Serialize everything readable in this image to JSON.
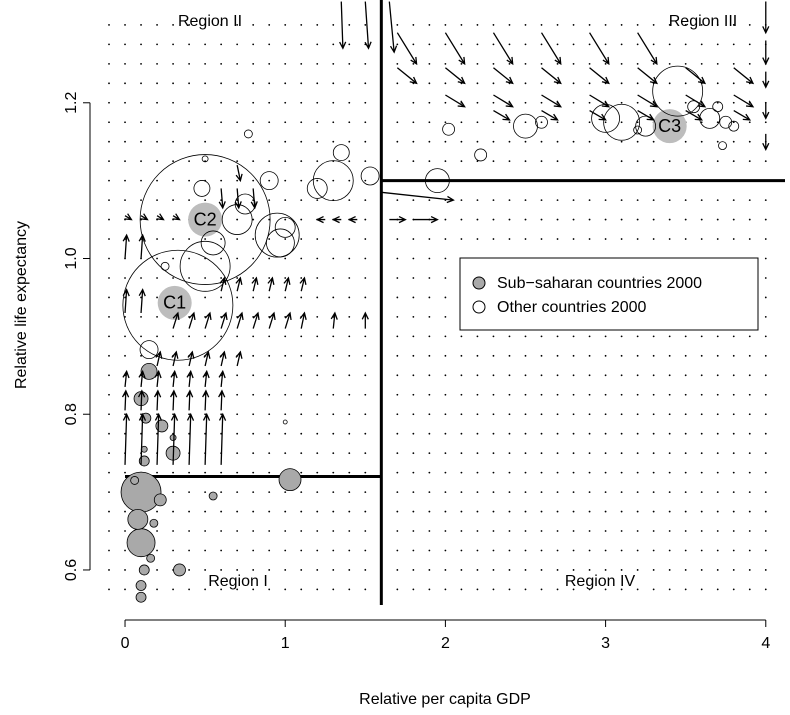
{
  "chart_data": {
    "type": "bubble-field",
    "xlabel": "Relative per capita GDP",
    "ylabel": "Relative life expectancy",
    "xlim": [
      -0.125,
      4.12
    ],
    "ylim": [
      0.555,
      1.332
    ],
    "xticks": [
      0,
      1,
      2,
      3,
      4
    ],
    "yticks": [
      0.6,
      0.8,
      {
        "value": 1.0,
        "label": "1.0"
      },
      1.2
    ],
    "legend": "center-right",
    "annotations": [
      "Region II",
      "Region III",
      "Region I",
      "Region IV"
    ],
    "thresholds": [
      {
        "x": [
          1.6,
          1.6
        ],
        "y": [
          0.555,
          1.332
        ]
      },
      {
        "x": [
          0,
          1.6
        ],
        "y": [
          0.72,
          0.72
        ]
      },
      {
        "x": [
          1.6,
          4.12
        ],
        "y": [
          1.1,
          1.1
        ]
      }
    ],
    "series": [
      {
        "name": "Sub−saharan countries 2000",
        "color": "#a9a9a9",
        "x": [
          0.1,
          0.1,
          0.08,
          0.12,
          0.15,
          0.1,
          0.13,
          0.23,
          0.3,
          0.3,
          0.55,
          0.22,
          0.34,
          0.12,
          0.1,
          0.1,
          0.16,
          0.18,
          1.03,
          0.12,
          0.06
        ],
        "y": [
          0.7,
          0.635,
          0.665,
          0.74,
          0.855,
          0.82,
          0.795,
          0.785,
          0.75,
          0.77,
          0.695,
          0.69,
          0.6,
          0.6,
          0.58,
          0.565,
          0.615,
          0.66,
          0.716,
          0.755,
          0.715
        ],
        "sizes": [
          20,
          14,
          10,
          5,
          8,
          7,
          5,
          6,
          7,
          3,
          4,
          6,
          6,
          5,
          5,
          5,
          4,
          4,
          11,
          3,
          4
        ]
      },
      {
        "name": "Other countries 2000",
        "color": "none",
        "x": [
          0.33,
          0.5,
          0.5,
          0.48,
          0.55,
          0.7,
          0.75,
          0.95,
          0.97,
          1.0,
          0.9,
          1.2,
          1.3,
          1.35,
          1.53,
          1.95,
          0.15,
          0.25,
          0.77,
          0.5,
          1.0,
          2.02,
          2.22,
          2.5,
          2.6,
          3.0,
          3.1,
          3.25,
          3.45,
          3.55,
          3.65,
          3.7,
          3.75,
          3.8,
          3.73,
          3.2
        ],
        "y": [
          0.94,
          1.05,
          0.99,
          1.09,
          1.02,
          1.05,
          1.07,
          1.03,
          1.02,
          1.04,
          1.1,
          1.09,
          1.1,
          1.136,
          1.106,
          1.1,
          0.883,
          0.99,
          1.16,
          1.128,
          0.79,
          1.166,
          1.133,
          1.17,
          1.175,
          1.18,
          1.175,
          1.17,
          1.215,
          1.195,
          1.18,
          1.195,
          1.175,
          1.17,
          1.145,
          1.165
        ],
        "sizes": [
          55,
          65,
          25,
          8,
          12,
          15,
          10,
          22,
          14,
          10,
          9,
          10,
          20,
          8,
          9,
          12,
          9,
          4,
          4,
          3,
          2,
          6,
          6,
          12,
          6,
          14,
          18,
          10,
          25,
          6,
          10,
          5,
          6,
          5,
          4,
          4
        ]
      }
    ],
    "clusters": {
      "labels": [
        "C1",
        "C2",
        "C3"
      ],
      "color": "#bdbdbd",
      "x": [
        0.31,
        0.5,
        3.4
      ],
      "y": [
        0.943,
        1.05,
        1.17
      ]
    },
    "arrows": [
      [
        0,
        0.735,
        0.01,
        0.8
      ],
      [
        0.1,
        0.735,
        0.11,
        0.8
      ],
      [
        0.2,
        0.735,
        0.21,
        0.8
      ],
      [
        0.3,
        0.735,
        0.31,
        0.8
      ],
      [
        0.4,
        0.735,
        0.41,
        0.8
      ],
      [
        0.5,
        0.735,
        0.51,
        0.8
      ],
      [
        0.6,
        0.735,
        0.61,
        0.8
      ],
      [
        0,
        0.805,
        0.005,
        0.83
      ],
      [
        0.1,
        0.805,
        0.105,
        0.83
      ],
      [
        0.2,
        0.805,
        0.205,
        0.83
      ],
      [
        0.3,
        0.805,
        0.305,
        0.83
      ],
      [
        0.4,
        0.805,
        0.405,
        0.83
      ],
      [
        0.5,
        0.805,
        0.505,
        0.83
      ],
      [
        0.6,
        0.805,
        0.605,
        0.83
      ],
      [
        0,
        0.835,
        0.01,
        0.855
      ],
      [
        0.1,
        0.835,
        0.11,
        0.855
      ],
      [
        0.2,
        0.835,
        0.21,
        0.855
      ],
      [
        0.3,
        0.835,
        0.31,
        0.855
      ],
      [
        0.4,
        0.835,
        0.41,
        0.855
      ],
      [
        0.5,
        0.835,
        0.51,
        0.855
      ],
      [
        0.6,
        0.835,
        0.61,
        0.855
      ],
      [
        0.2,
        0.862,
        0.22,
        0.88
      ],
      [
        0.3,
        0.862,
        0.32,
        0.88
      ],
      [
        0.4,
        0.862,
        0.42,
        0.88
      ],
      [
        0.5,
        0.862,
        0.52,
        0.88
      ],
      [
        0.6,
        0.862,
        0.62,
        0.88
      ],
      [
        0.7,
        0.862,
        0.72,
        0.88
      ],
      [
        0.3,
        0.91,
        0.33,
        0.93
      ],
      [
        0.4,
        0.91,
        0.43,
        0.93
      ],
      [
        0.5,
        0.91,
        0.53,
        0.93
      ],
      [
        0.6,
        0.91,
        0.63,
        0.93
      ],
      [
        0.7,
        0.91,
        0.73,
        0.93
      ],
      [
        0.8,
        0.91,
        0.83,
        0.93
      ],
      [
        0.9,
        0.91,
        0.93,
        0.93
      ],
      [
        1.0,
        0.91,
        1.03,
        0.93
      ],
      [
        1.1,
        0.91,
        1.12,
        0.93
      ],
      [
        1.3,
        0.91,
        1.31,
        0.93
      ],
      [
        1.5,
        0.91,
        1.5,
        0.93
      ],
      [
        0.6,
        0.958,
        0.62,
        0.975
      ],
      [
        0.7,
        0.958,
        0.72,
        0.975
      ],
      [
        0.8,
        0.958,
        0.82,
        0.975
      ],
      [
        0.9,
        0.958,
        0.92,
        0.975
      ],
      [
        1.0,
        0.958,
        1.02,
        0.975
      ],
      [
        1.1,
        0.958,
        1.12,
        0.975
      ],
      [
        0,
        1.0,
        0.01,
        1.03
      ],
      [
        0.1,
        1.0,
        0.11,
        1.03
      ],
      [
        0,
        0.93,
        0.01,
        0.96
      ],
      [
        0.1,
        0.93,
        0.11,
        0.96
      ],
      [
        0,
        1.055,
        0.04,
        1.05
      ],
      [
        0.1,
        1.055,
        0.14,
        1.05
      ],
      [
        0.2,
        1.055,
        0.24,
        1.05
      ],
      [
        0.3,
        1.055,
        0.34,
        1.05
      ],
      [
        1.25,
        1.05,
        1.2,
        1.05
      ],
      [
        1.35,
        1.05,
        1.3,
        1.05
      ],
      [
        1.45,
        1.05,
        1.4,
        1.05
      ],
      [
        0.6,
        1.09,
        0.61,
        1.065
      ],
      [
        0.7,
        1.09,
        0.71,
        1.065
      ],
      [
        0.8,
        1.09,
        0.81,
        1.065
      ],
      [
        0.7,
        1.12,
        0.72,
        1.1
      ],
      [
        1.65,
        1.05,
        1.75,
        1.05
      ],
      [
        1.8,
        1.05,
        1.95,
        1.05
      ],
      [
        1.6,
        1.085,
        2.05,
        1.075
      ],
      [
        1.35,
        1.33,
        1.36,
        1.27
      ],
      [
        1.5,
        1.33,
        1.52,
        1.27
      ],
      [
        1.65,
        1.33,
        1.68,
        1.265
      ],
      [
        1.7,
        1.29,
        1.82,
        1.25
      ],
      [
        2.0,
        1.29,
        2.12,
        1.25
      ],
      [
        2.3,
        1.29,
        2.42,
        1.25
      ],
      [
        2.6,
        1.29,
        2.72,
        1.25
      ],
      [
        2.9,
        1.29,
        3.02,
        1.25
      ],
      [
        3.2,
        1.29,
        3.32,
        1.25
      ],
      [
        1.7,
        1.245,
        1.82,
        1.225
      ],
      [
        2.0,
        1.245,
        2.12,
        1.225
      ],
      [
        2.3,
        1.245,
        2.42,
        1.225
      ],
      [
        2.6,
        1.245,
        2.72,
        1.225
      ],
      [
        2.9,
        1.245,
        3.02,
        1.225
      ],
      [
        3.2,
        1.245,
        3.32,
        1.225
      ],
      [
        3.5,
        1.245,
        3.62,
        1.225
      ],
      [
        3.8,
        1.245,
        3.92,
        1.225
      ],
      [
        2.0,
        1.21,
        2.12,
        1.195
      ],
      [
        2.3,
        1.21,
        2.42,
        1.195
      ],
      [
        2.6,
        1.21,
        2.72,
        1.195
      ],
      [
        2.9,
        1.21,
        3.02,
        1.195
      ],
      [
        3.2,
        1.21,
        3.32,
        1.195
      ],
      [
        3.5,
        1.21,
        3.62,
        1.195
      ],
      [
        3.8,
        1.21,
        3.92,
        1.195
      ],
      [
        2.3,
        1.19,
        2.4,
        1.178
      ],
      [
        2.6,
        1.19,
        2.7,
        1.178
      ],
      [
        2.9,
        1.19,
        3.0,
        1.178
      ],
      [
        3.2,
        1.19,
        3.3,
        1.178
      ],
      [
        3.5,
        1.19,
        3.6,
        1.178
      ],
      [
        3.8,
        1.19,
        3.9,
        1.178
      ],
      [
        4.0,
        1.33,
        4.0,
        1.29
      ],
      [
        4.0,
        1.28,
        4.0,
        1.25
      ],
      [
        4.0,
        1.24,
        4.0,
        1.22
      ],
      [
        4.0,
        1.2,
        4.0,
        1.18
      ],
      [
        4.0,
        1.16,
        4.0,
        1.14
      ]
    ]
  }
}
